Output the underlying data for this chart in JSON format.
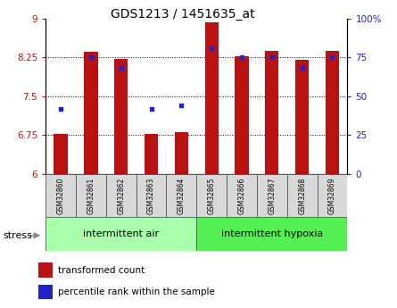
{
  "title": "GDS1213 / 1451635_at",
  "samples": [
    "GSM32860",
    "GSM32861",
    "GSM32862",
    "GSM32863",
    "GSM32864",
    "GSM32865",
    "GSM32866",
    "GSM32867",
    "GSM32868",
    "GSM32869"
  ],
  "bar_values": [
    6.78,
    8.35,
    8.22,
    6.78,
    6.8,
    8.93,
    8.27,
    8.38,
    8.2,
    8.37
  ],
  "dot_percentiles": [
    42,
    75,
    68,
    42,
    44,
    81,
    75,
    75,
    68,
    75
  ],
  "bar_color": "#bb1111",
  "dot_color": "#2222cc",
  "ylim_left": [
    6,
    9
  ],
  "ylim_right": [
    0,
    100
  ],
  "yticks_left": [
    6,
    6.75,
    7.5,
    8.25,
    9
  ],
  "yticks_right": [
    0,
    25,
    50,
    75,
    100
  ],
  "groups": [
    {
      "label": "intermittent air",
      "start": 0,
      "end": 5,
      "color": "#aaffaa"
    },
    {
      "label": "intermittent hypoxia",
      "start": 5,
      "end": 10,
      "color": "#55ee55"
    }
  ],
  "stress_label": "stress",
  "legend_bar": "transformed count",
  "legend_dot": "percentile rank within the sample",
  "bar_width": 0.45,
  "background_color": "white"
}
